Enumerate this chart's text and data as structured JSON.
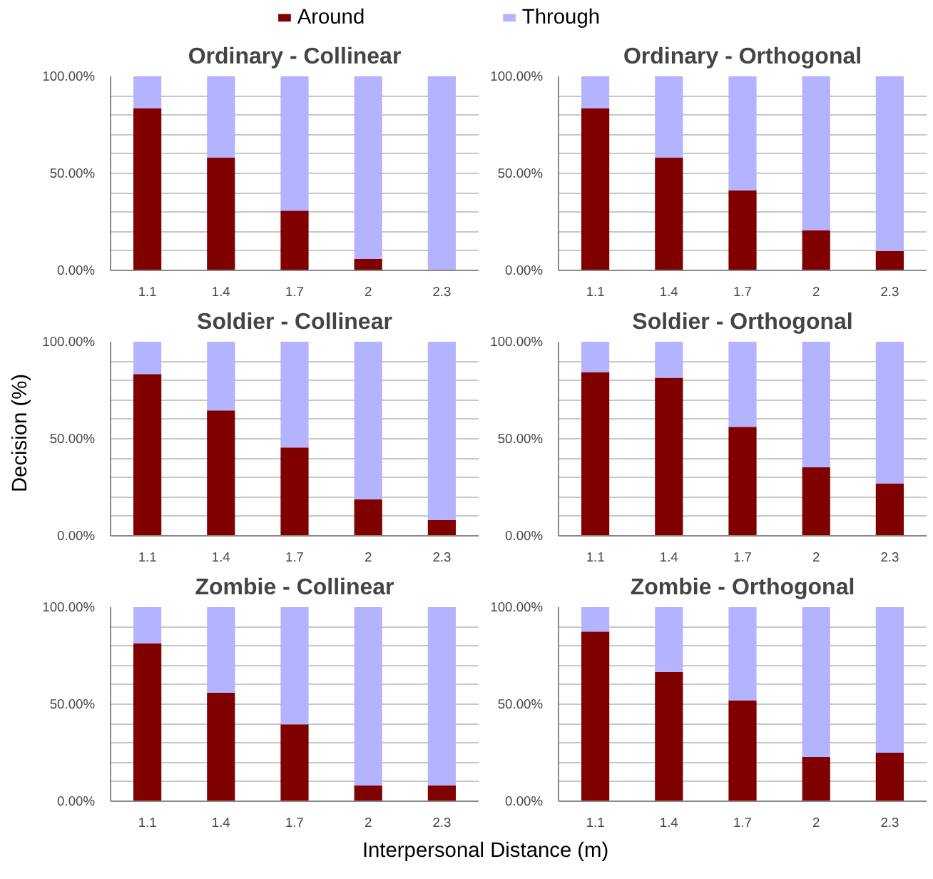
{
  "chart_data": [
    {
      "type": "bar",
      "title": "Ordinary - Collinear",
      "categories": [
        "1.1",
        "1.4",
        "1.7",
        "2",
        "2.3"
      ],
      "stacked": true,
      "legend": "top",
      "grid": "y",
      "ylim": [
        0,
        100
      ],
      "yticks": [
        {
          "value": 0,
          "label": "0.00%"
        },
        {
          "value": 10,
          "label": null
        },
        {
          "value": 20,
          "label": null
        },
        {
          "value": 30,
          "label": null
        },
        {
          "value": 40,
          "label": null
        },
        {
          "value": 50,
          "label": "50.00%"
        },
        {
          "value": 60,
          "label": null
        },
        {
          "value": 70,
          "label": null
        },
        {
          "value": 80,
          "label": null
        },
        {
          "value": 90,
          "label": null
        },
        {
          "value": 100,
          "label": "100.00%"
        }
      ],
      "series": [
        {
          "name": "Around",
          "color": "#800000",
          "values": [
            83.5,
            58.2,
            30.8,
            6,
            0
          ]
        },
        {
          "name": "Through",
          "color": "#b3b3ff",
          "values": [
            16.5,
            41.8,
            69.2,
            94,
            100
          ]
        }
      ]
    },
    {
      "type": "bar",
      "title": "Ordinary - Orthogonal",
      "categories": [
        "1.1",
        "1.4",
        "1.7",
        "2",
        "2.3"
      ],
      "stacked": true,
      "grid": "y",
      "ylim": [
        0,
        100
      ],
      "yticks": [
        {
          "value": 0,
          "label": "0.00%"
        },
        {
          "value": 10,
          "label": null
        },
        {
          "value": 20,
          "label": null
        },
        {
          "value": 30,
          "label": null
        },
        {
          "value": 40,
          "label": null
        },
        {
          "value": 50,
          "label": "50.00%"
        },
        {
          "value": 60,
          "label": null
        },
        {
          "value": 70,
          "label": null
        },
        {
          "value": 80,
          "label": null
        },
        {
          "value": 90,
          "label": null
        },
        {
          "value": 100,
          "label": "100.00%"
        }
      ],
      "series": [
        {
          "color": "#800000",
          "values": [
            83.5,
            58.2,
            41.3,
            20.6,
            10
          ]
        },
        {
          "color": "#b3b3ff",
          "values": [
            16.5,
            41.8,
            58.7,
            79.4,
            90
          ]
        }
      ]
    },
    {
      "type": "bar",
      "title": "Soldier - Collinear",
      "ylabel": "Decision (%)",
      "categories": [
        "1.1",
        "1.4",
        "1.7",
        "2",
        "2.3"
      ],
      "stacked": true,
      "grid": "y",
      "ylim": [
        0,
        100
      ],
      "yticks": [
        {
          "value": 0,
          "label": "0.00%"
        },
        {
          "value": 10,
          "label": null
        },
        {
          "value": 20,
          "label": null
        },
        {
          "value": 30,
          "label": null
        },
        {
          "value": 40,
          "label": null
        },
        {
          "value": 50,
          "label": "50.00%"
        },
        {
          "value": 60,
          "label": null
        },
        {
          "value": 70,
          "label": null
        },
        {
          "value": 80,
          "label": null
        },
        {
          "value": 90,
          "label": null
        },
        {
          "value": 100,
          "label": "100.00%"
        }
      ],
      "series": [
        {
          "color": "#800000",
          "values": [
            83.4,
            64.6,
            45.5,
            18.8,
            8.2
          ]
        },
        {
          "color": "#b3b3ff",
          "values": [
            16.6,
            35.4,
            54.5,
            81.2,
            91.8
          ]
        }
      ]
    },
    {
      "type": "bar",
      "title": "Soldier - Orthogonal",
      "categories": [
        "1.1",
        "1.4",
        "1.7",
        "2",
        "2.3"
      ],
      "stacked": true,
      "grid": "y",
      "ylim": [
        0,
        100
      ],
      "yticks": [
        {
          "value": 0,
          "label": "0.00%"
        },
        {
          "value": 10,
          "label": null
        },
        {
          "value": 20,
          "label": null
        },
        {
          "value": 30,
          "label": null
        },
        {
          "value": 40,
          "label": null
        },
        {
          "value": 50,
          "label": "50.00%"
        },
        {
          "value": 60,
          "label": null
        },
        {
          "value": 70,
          "label": null
        },
        {
          "value": 80,
          "label": null
        },
        {
          "value": 90,
          "label": null
        },
        {
          "value": 100,
          "label": "100.00%"
        }
      ],
      "series": [
        {
          "color": "#800000",
          "values": [
            84.4,
            81.4,
            56.2,
            35.4,
            27
          ]
        },
        {
          "color": "#b3b3ff",
          "values": [
            15.6,
            18.6,
            43.8,
            64.6,
            73
          ]
        }
      ]
    },
    {
      "type": "bar",
      "title": "Zombie - Collinear",
      "xlabel": "Interpersonal Distance (m)",
      "categories": [
        "1.1",
        "1.4",
        "1.7",
        "2",
        "2.3"
      ],
      "stacked": true,
      "grid": "y",
      "ylim": [
        0,
        100
      ],
      "yticks": [
        {
          "value": 0,
          "label": "0.00%"
        },
        {
          "value": 10,
          "label": null
        },
        {
          "value": 20,
          "label": null
        },
        {
          "value": 30,
          "label": null
        },
        {
          "value": 40,
          "label": null
        },
        {
          "value": 50,
          "label": "50.00%"
        },
        {
          "value": 60,
          "label": null
        },
        {
          "value": 70,
          "label": null
        },
        {
          "value": 80,
          "label": null
        },
        {
          "value": 90,
          "label": null
        },
        {
          "value": 100,
          "label": "100.00%"
        }
      ],
      "series": [
        {
          "color": "#800000",
          "values": [
            81.4,
            55.9,
            39.6,
            8.2,
            8.2
          ]
        },
        {
          "color": "#b3b3ff",
          "values": [
            18.6,
            44.1,
            60.4,
            91.8,
            91.8
          ]
        }
      ]
    },
    {
      "type": "bar",
      "title": "Zombie - Orthogonal",
      "categories": [
        "1.1",
        "1.4",
        "1.7",
        "2",
        "2.3"
      ],
      "stacked": true,
      "grid": "y",
      "ylim": [
        0,
        100
      ],
      "yticks": [
        {
          "value": 0,
          "label": "0.00%"
        },
        {
          "value": 10,
          "label": null
        },
        {
          "value": 20,
          "label": null
        },
        {
          "value": 30,
          "label": null
        },
        {
          "value": 40,
          "label": null
        },
        {
          "value": 50,
          "label": "50.00%"
        },
        {
          "value": 60,
          "label": null
        },
        {
          "value": 70,
          "label": null
        },
        {
          "value": 80,
          "label": null
        },
        {
          "value": 90,
          "label": null
        },
        {
          "value": 100,
          "label": "100.00%"
        }
      ],
      "series": [
        {
          "color": "#800000",
          "values": [
            87.4,
            66.6,
            52,
            22.8,
            25
          ]
        },
        {
          "color": "#b3b3ff",
          "values": [
            12.6,
            33.4,
            48,
            77.2,
            75
          ]
        }
      ]
    }
  ]
}
